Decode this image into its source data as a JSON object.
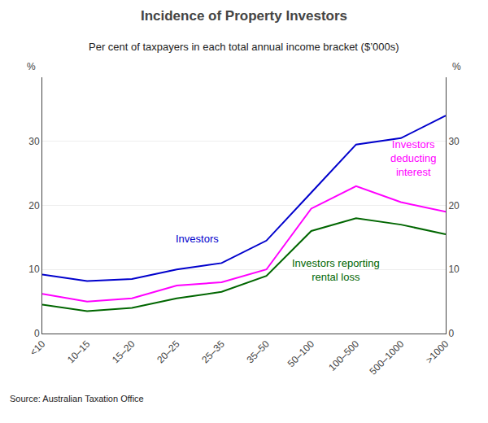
{
  "chart_data": {
    "type": "line",
    "title": "Incidence of Property Investors",
    "subtitle": "Per cent of taxpayers in each total annual income bracket ($’000s)",
    "ylabel": "%",
    "y2label": "%",
    "annotations": [
      "Source: Australian Taxation Office"
    ],
    "categories": [
      "<10",
      "10–15",
      "15–20",
      "20–25",
      "25–35",
      "35–50",
      "50–100",
      "100–500",
      "500–1000",
      ">1000"
    ],
    "series": [
      {
        "name": "Investors",
        "color": "#0000CC",
        "values": [
          9.2,
          8.2,
          8.5,
          10.0,
          11.0,
          14.5,
          22.0,
          29.5,
          30.5,
          34.0
        ]
      },
      {
        "name": "Investors\ndeducting\ninterest",
        "color": "#FF00FF",
        "values": [
          6.2,
          5.0,
          5.5,
          7.5,
          8.0,
          10.0,
          19.5,
          23.0,
          20.5,
          19.0
        ]
      },
      {
        "name": "Investors reporting\nrental loss",
        "color": "#006600",
        "values": [
          4.5,
          3.5,
          4.0,
          5.5,
          6.5,
          9.0,
          16.0,
          18.0,
          17.0,
          15.5
        ]
      }
    ],
    "ylim": [
      0,
      40
    ],
    "yticks": [
      0,
      10,
      20,
      30
    ],
    "y2lim": [
      0,
      40
    ],
    "y2ticks": [
      0,
      10,
      20,
      30
    ],
    "grid": true
  }
}
